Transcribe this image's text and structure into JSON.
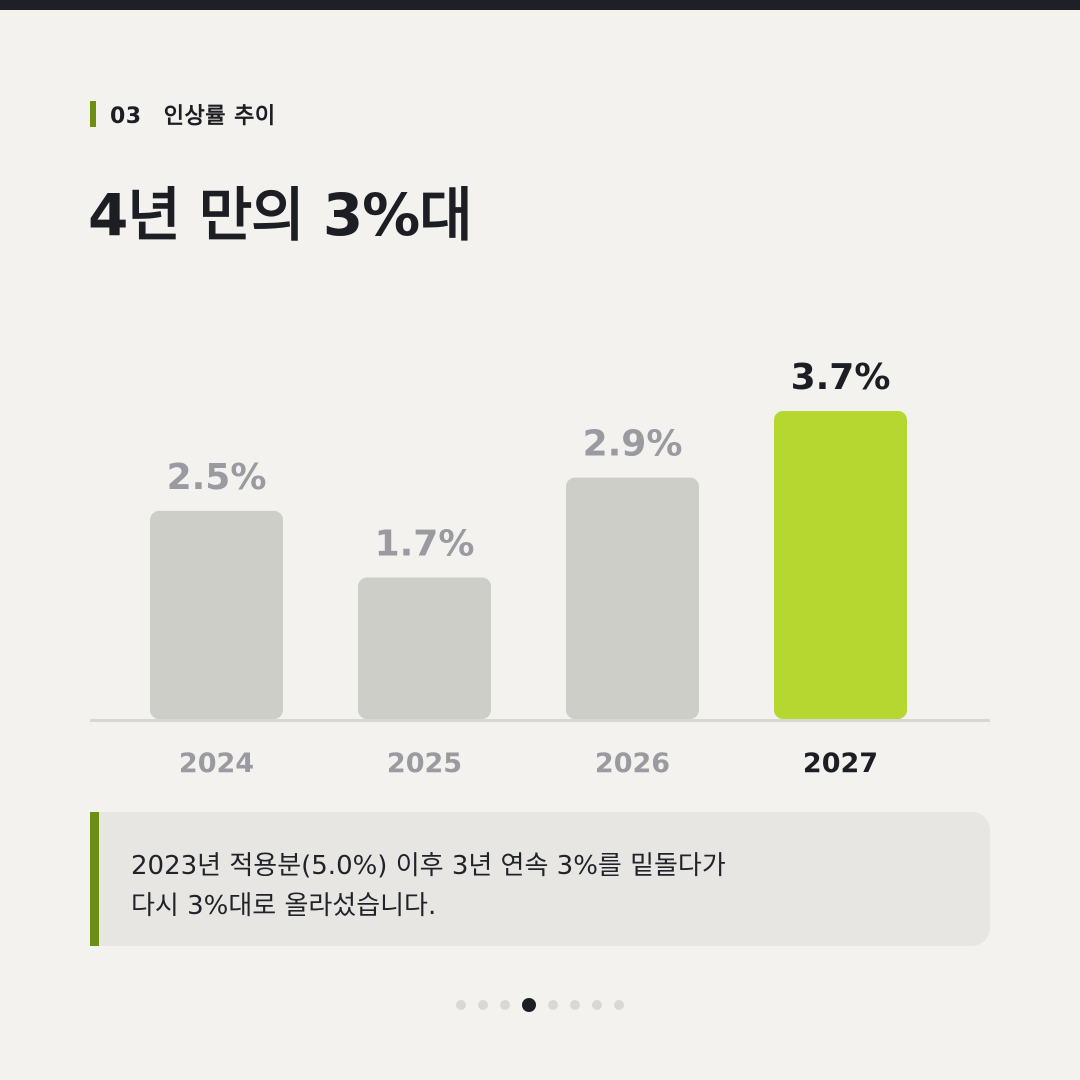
{
  "section": {
    "number": "03",
    "label": "인상률 추이"
  },
  "title": "4년 만의 3%대",
  "colors": {
    "accent": "#b6d72f",
    "accent_dark": "#6e8d13",
    "bar_muted": "#cdcec8",
    "value_muted": "#9a9aa0",
    "text_dark": "#1d1e24",
    "baseline": "#d8d7d3"
  },
  "chart_data": {
    "type": "bar",
    "categories": [
      "2024",
      "2025",
      "2026",
      "2027"
    ],
    "values": [
      2.5,
      1.7,
      2.9,
      3.7
    ],
    "value_labels": [
      "2.5%",
      "1.7%",
      "2.9%",
      "3.7%"
    ],
    "highlight": "2027",
    "ylim": [
      0,
      3.7
    ],
    "title": "",
    "xlabel": "",
    "ylabel": "",
    "grid": false
  },
  "note": {
    "line1": "2023년 적용분(5.0%) 이후 3년 연속 3%를 밑돌다가",
    "line2": "다시 3%대로 올라섰습니다."
  },
  "pagination": {
    "total": 8,
    "current": 4
  }
}
